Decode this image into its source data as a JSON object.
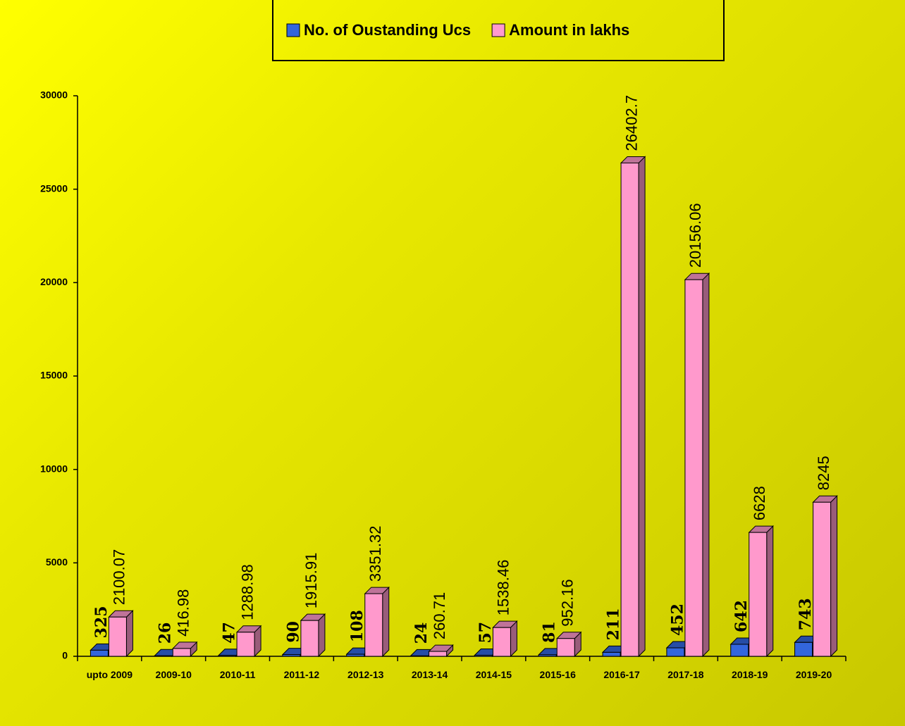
{
  "chart_data": {
    "type": "bar",
    "categories": [
      "upto 2009",
      "2009-10",
      "2010-11",
      "2011-12",
      "2012-13",
      "2013-14",
      "2014-15",
      "2015-16",
      "2016-17",
      "2017-18",
      "2018-19",
      "2019-20"
    ],
    "series": [
      {
        "name": "No. of Oustanding Ucs",
        "color": "#3366dd",
        "values": [
          325,
          26,
          47,
          90,
          108,
          24,
          57,
          81,
          211,
          452,
          642,
          743
        ]
      },
      {
        "name": "Amount in lakhs",
        "color": "#ff99cc",
        "values": [
          2100.07,
          416.98,
          1288.98,
          1915.91,
          3351.32,
          260.71,
          1538.46,
          952.16,
          26402.7,
          20156.06,
          6628,
          8245
        ]
      }
    ],
    "ylim": [
      0,
      30000
    ],
    "yticks": [
      0,
      5000,
      10000,
      15000,
      20000,
      25000,
      30000
    ],
    "legend": "top"
  }
}
